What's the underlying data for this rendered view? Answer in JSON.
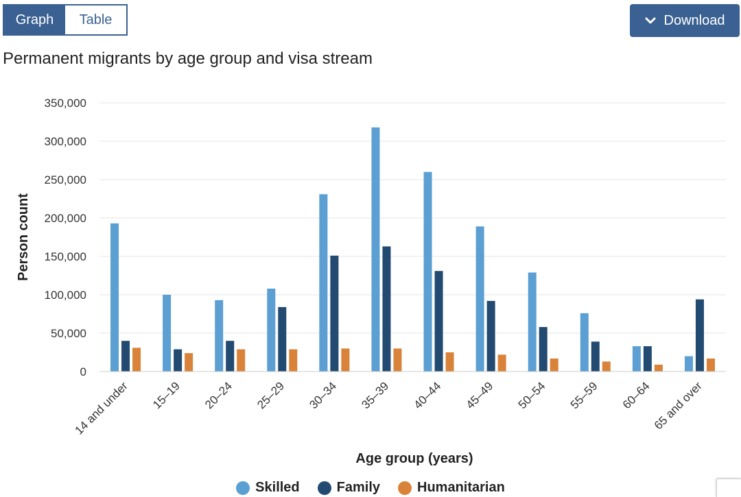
{
  "view_toggle": {
    "graph_label": "Graph",
    "table_label": "Table",
    "active": "Graph"
  },
  "download": {
    "label": "Download",
    "icon": "chevron-down-icon"
  },
  "colors": {
    "accent": "#3a6192",
    "skilled": "#5b9fd3",
    "family": "#234a70",
    "humanitarian": "#d9833a",
    "grid": "#e6e6e6"
  },
  "chart_data": {
    "type": "bar",
    "title": "Permanent migrants by age group and visa stream",
    "xlabel": "Age group (years)",
    "ylabel": "Person count",
    "ylim": [
      0,
      350000
    ],
    "yticks": [
      0,
      50000,
      100000,
      150000,
      200000,
      250000,
      300000,
      350000
    ],
    "ytick_labels": [
      "0",
      "50,000",
      "100,000",
      "150,000",
      "200,000",
      "250,000",
      "300,000",
      "350,000"
    ],
    "grid": true,
    "legend": "bottom-center",
    "categories": [
      "14 and under",
      "15–19",
      "20–24",
      "25–29",
      "30–34",
      "35–39",
      "40–44",
      "45–49",
      "50–54",
      "55–59",
      "60–64",
      "65 and over"
    ],
    "series": [
      {
        "name": "Skilled",
        "color": "#5b9fd3",
        "values": [
          193000,
          100000,
          93000,
          108000,
          231000,
          318000,
          260000,
          189000,
          129000,
          76000,
          33000,
          20000
        ]
      },
      {
        "name": "Family",
        "color": "#234a70",
        "values": [
          40000,
          29000,
          40000,
          84000,
          151000,
          163000,
          131000,
          92000,
          58000,
          39000,
          33000,
          94000
        ]
      },
      {
        "name": "Humanitarian",
        "color": "#d9833a",
        "values": [
          31000,
          24000,
          29000,
          29000,
          30000,
          30000,
          25000,
          22000,
          17000,
          13000,
          9000,
          17000
        ]
      }
    ]
  }
}
